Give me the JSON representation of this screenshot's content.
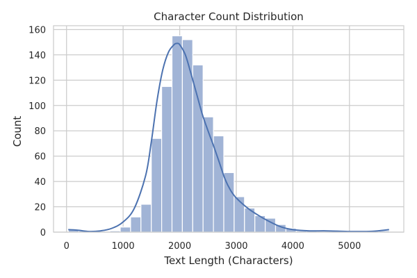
{
  "chart_data": {
    "type": "bar",
    "title": "Character Count Distribution",
    "xlabel": "Text Length (Characters)",
    "ylabel": "Count",
    "xlim": [
      -230,
      5960
    ],
    "ylim": [
      0,
      163
    ],
    "x_ticks": [
      0,
      1000,
      2000,
      3000,
      4000,
      5000
    ],
    "y_ticks": [
      0,
      20,
      40,
      60,
      80,
      100,
      120,
      140,
      160
    ],
    "grid": true,
    "bin_width": 183,
    "bins": [
      {
        "start": 34,
        "count": 2
      },
      {
        "start": 217,
        "count": 1
      },
      {
        "start": 400,
        "count": 0
      },
      {
        "start": 583,
        "count": 0
      },
      {
        "start": 766,
        "count": 1
      },
      {
        "start": 949,
        "count": 4
      },
      {
        "start": 1132,
        "count": 12
      },
      {
        "start": 1315,
        "count": 22
      },
      {
        "start": 1498,
        "count": 74
      },
      {
        "start": 1681,
        "count": 115
      },
      {
        "start": 1864,
        "count": 155
      },
      {
        "start": 2047,
        "count": 152
      },
      {
        "start": 2230,
        "count": 132
      },
      {
        "start": 2413,
        "count": 91
      },
      {
        "start": 2596,
        "count": 76
      },
      {
        "start": 2779,
        "count": 47
      },
      {
        "start": 2962,
        "count": 28
      },
      {
        "start": 3145,
        "count": 19
      },
      {
        "start": 3328,
        "count": 13
      },
      {
        "start": 3511,
        "count": 11
      },
      {
        "start": 3694,
        "count": 6
      },
      {
        "start": 3877,
        "count": 3
      },
      {
        "start": 4060,
        "count": 1
      },
      {
        "start": 4243,
        "count": 1
      },
      {
        "start": 4426,
        "count": 0
      },
      {
        "start": 4609,
        "count": 0
      },
      {
        "start": 4792,
        "count": 0
      },
      {
        "start": 4975,
        "count": 0
      },
      {
        "start": 5158,
        "count": 0
      },
      {
        "start": 5341,
        "count": 0
      },
      {
        "start": 5524,
        "count": 1
      }
    ],
    "kde": {
      "x": [
        30,
        200,
        400,
        600,
        800,
        1000,
        1200,
        1400,
        1500,
        1600,
        1700,
        1800,
        1900,
        1950,
        2000,
        2100,
        2200,
        2300,
        2400,
        2500,
        2600,
        2700,
        2800,
        2900,
        3000,
        3200,
        3400,
        3600,
        3800,
        4000,
        4300,
        4600,
        5000,
        5300,
        5500,
        5700
      ],
      "y": [
        2,
        1.5,
        0.5,
        1,
        3,
        8,
        19,
        45,
        72,
        104,
        128,
        142,
        148,
        149,
        148,
        140,
        125,
        109,
        93,
        80,
        68,
        55,
        42,
        33,
        27,
        19,
        13,
        8,
        4,
        2,
        1,
        1,
        0.5,
        0.5,
        1,
        2
      ]
    },
    "colors": {
      "bar_fill": "#a1b4d6",
      "bar_edge": "#ffffff",
      "kde_line": "#4c72b0",
      "grid": "#cccccc",
      "frame": "#cccccc",
      "text": "#262626"
    }
  }
}
